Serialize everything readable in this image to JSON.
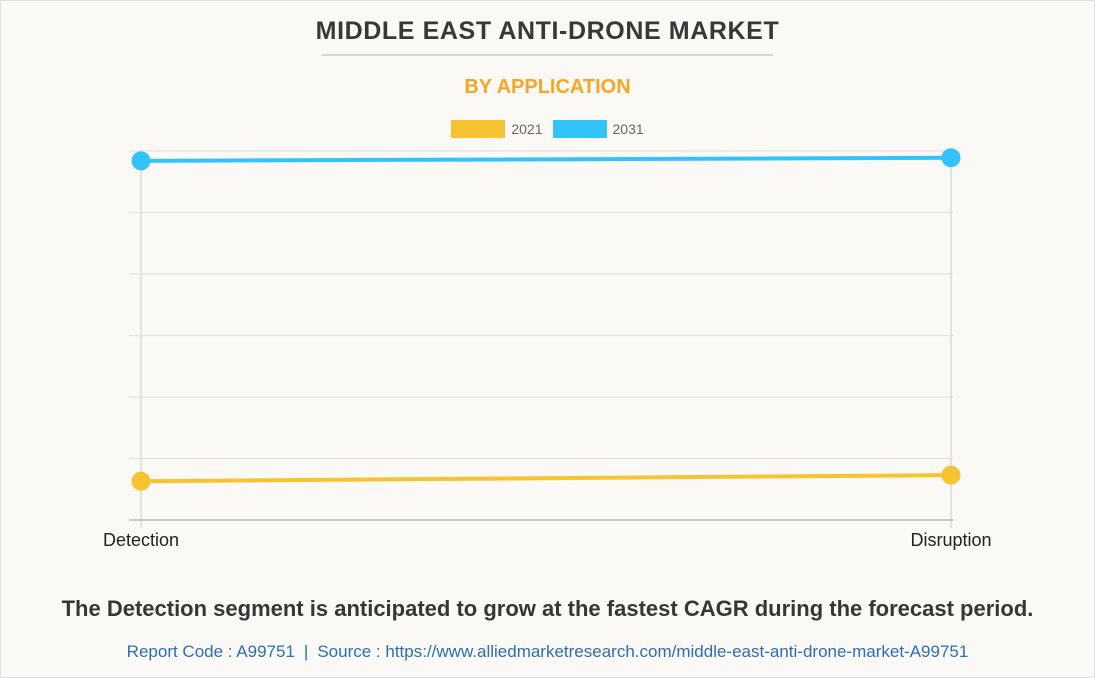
{
  "header": {
    "title": "MIDDLE EAST ANTI-DRONE MARKET",
    "subtitle": "BY APPLICATION"
  },
  "colors": {
    "series_2021": "#f5c430",
    "series_2031": "#33c3fb",
    "subtitle": "#f5a623",
    "link": "#2e6db4"
  },
  "chart_data": {
    "type": "line",
    "title": "MIDDLE EAST ANTI-DRONE MARKET",
    "subtitle": "BY APPLICATION",
    "categories": [
      "Detection",
      "Disruption"
    ],
    "series": [
      {
        "name": "2021",
        "color": "#f5c430",
        "values": [
          0.63,
          0.73
        ]
      },
      {
        "name": "2031",
        "color": "#33c3fb",
        "values": [
          5.84,
          5.89
        ]
      }
    ],
    "value_units": "relative (no y-axis labels shown; units = gridline intervals)",
    "ylim": [
      0,
      6
    ],
    "gridlines": 6,
    "grid": true,
    "xlabel": "",
    "ylabel": "",
    "legend": "top-center"
  },
  "legend": [
    {
      "label": "2021",
      "color": "#f5c430"
    },
    {
      "label": "2031",
      "color": "#33c3fb"
    }
  ],
  "caption": "The Detection segment is anticipated to grow at the fastest CAGR during the forecast period.",
  "footer": {
    "report_code": "Report Code : A99751",
    "separator": "|",
    "source": "Source : https://www.alliedmarketresearch.com/middle-east-anti-drone-market-A99751"
  }
}
